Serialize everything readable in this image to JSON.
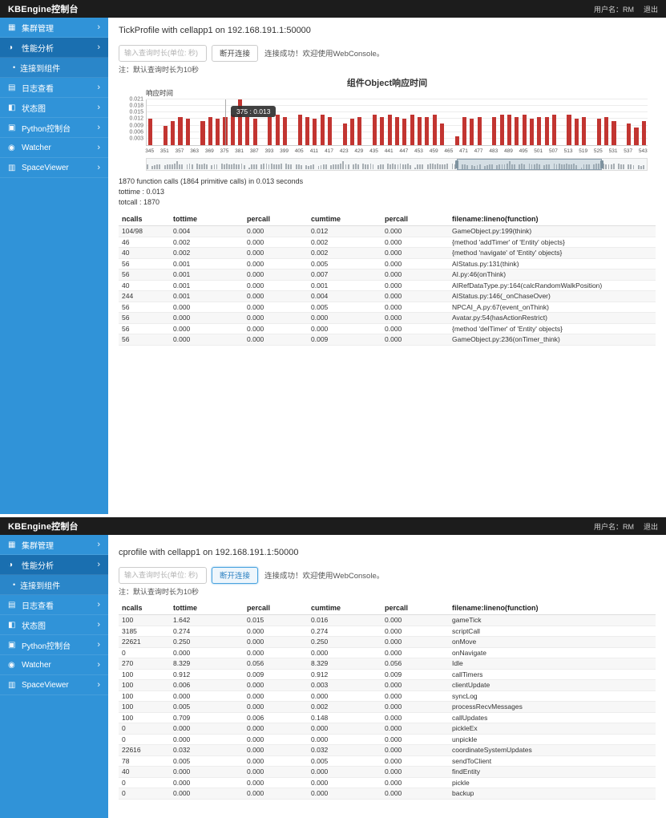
{
  "colors": {
    "header_bg": "#1c1c1c",
    "sidebar_bg": "#3093d8",
    "sidebar_active_bg": "#1a6fb0",
    "submenu_bg": "#2a86c9",
    "bar_color": "#c23531",
    "focus_blue": "#4aa3df"
  },
  "header": {
    "title": "KBEngine控制台",
    "user": "用户名：RM",
    "logout": "退出"
  },
  "sidebar": {
    "items": [
      {
        "key": "cluster",
        "label": "集群管理",
        "icon": "cluster-icon",
        "glyph": "▦",
        "active": false
      },
      {
        "key": "performance",
        "label": "性能分析",
        "icon": "performance-icon",
        "glyph": "◑",
        "active": true
      },
      {
        "key": "logs",
        "label": "日志查看",
        "icon": "logs-icon",
        "glyph": "▤",
        "active": false
      },
      {
        "key": "status-chart",
        "label": "状态图",
        "icon": "status-chart-icon",
        "glyph": "◧",
        "active": false
      },
      {
        "key": "python-console",
        "label": "Python控制台",
        "icon": "python-console-icon",
        "glyph": "▣",
        "active": false
      },
      {
        "key": "watcher",
        "label": "Watcher",
        "icon": "watcher-icon",
        "glyph": "◉",
        "active": false
      },
      {
        "key": "spaceviewer",
        "label": "SpaceViewer",
        "icon": "spaceviewer-icon",
        "glyph": "▥",
        "active": false
      }
    ],
    "submenu_label": "连接到组件",
    "chevron": "›",
    "bullet": "•"
  },
  "screen1": {
    "title": "TickProfile with cellapp1 on 192.168.191.1:50000",
    "input_placeholder": "输入查询时长(单位: 秒)",
    "disconnect_label": "断开连接",
    "status_text": "连接成功！欢迎使用WebConsole。",
    "note": "注：默认查询时长为10秒",
    "stats": [
      "1870 function calls (1864 primitive calls) in 0.013 seconds",
      "tottime : 0.013",
      "totcall : 1870"
    ],
    "table": {
      "headers": [
        "ncalls",
        "tottime",
        "percall",
        "cumtime",
        "percall",
        "filename:lineno(function)"
      ],
      "rows": [
        [
          "104/98",
          "0.004",
          "0.000",
          "0.012",
          "0.000",
          "GameObject.py:199(think)"
        ],
        [
          "46",
          "0.002",
          "0.000",
          "0.002",
          "0.000",
          "{method 'addTimer' of 'Entity' objects}"
        ],
        [
          "40",
          "0.002",
          "0.000",
          "0.002",
          "0.000",
          "{method 'navigate' of 'Entity' objects}"
        ],
        [
          "56",
          "0.001",
          "0.000",
          "0.005",
          "0.000",
          "AIStatus.py:131(think)"
        ],
        [
          "56",
          "0.001",
          "0.000",
          "0.007",
          "0.000",
          "AI.py:46(onThink)"
        ],
        [
          "40",
          "0.001",
          "0.000",
          "0.001",
          "0.000",
          "AIRefDataType.py:164(calcRandomWalkPosition)"
        ],
        [
          "244",
          "0.001",
          "0.000",
          "0.004",
          "0.000",
          "AIStatus.py:146(_onChaseOver)"
        ],
        [
          "56",
          "0.000",
          "0.000",
          "0.005",
          "0.000",
          "NPCAI_A.py:67(event_onThink)"
        ],
        [
          "56",
          "0.000",
          "0.000",
          "0.000",
          "0.000",
          "Avatar.py:54(hasActionRestrict)"
        ],
        [
          "56",
          "0.000",
          "0.000",
          "0.000",
          "0.000",
          "{method 'delTimer' of 'Entity' objects}"
        ],
        [
          "56",
          "0.000",
          "0.000",
          "0.009",
          "0.000",
          "GameObject.py:236(onTimer_think)"
        ]
      ]
    }
  },
  "screen2": {
    "title": "cprofile with cellapp1 on 192.168.191.1:50000",
    "input_placeholder": "输入查询时长(单位: 秒)",
    "disconnect_label": "断开连接",
    "status_text": "连接成功！欢迎使用WebConsole。",
    "note": "注：默认查询时长为10秒",
    "table": {
      "headers": [
        "ncalls",
        "tottime",
        "percall",
        "cumtime",
        "percall",
        "filename:lineno(function)"
      ],
      "rows": [
        [
          "100",
          "1.642",
          "0.015",
          "0.016",
          "0.000",
          "gameTick"
        ],
        [
          "3185",
          "0.274",
          "0.000",
          "0.274",
          "0.000",
          "scriptCall"
        ],
        [
          "22621",
          "0.250",
          "0.000",
          "0.250",
          "0.000",
          "onMove"
        ],
        [
          "0",
          "0.000",
          "0.000",
          "0.000",
          "0.000",
          "onNavigate"
        ],
        [
          "270",
          "8.329",
          "0.056",
          "8.329",
          "0.056",
          "Idle"
        ],
        [
          "100",
          "0.912",
          "0.009",
          "0.912",
          "0.009",
          "callTimers"
        ],
        [
          "100",
          "0.006",
          "0.000",
          "0.003",
          "0.000",
          "clientUpdate"
        ],
        [
          "100",
          "0.000",
          "0.000",
          "0.000",
          "0.000",
          "syncLog"
        ],
        [
          "100",
          "0.005",
          "0.000",
          "0.002",
          "0.000",
          "processRecvMessages"
        ],
        [
          "100",
          "0.709",
          "0.006",
          "0.148",
          "0.000",
          "callUpdates"
        ],
        [
          "0",
          "0.000",
          "0.000",
          "0.000",
          "0.000",
          "pickleEx"
        ],
        [
          "0",
          "0.000",
          "0.000",
          "0.000",
          "0.000",
          "unpickle"
        ],
        [
          "22616",
          "0.032",
          "0.000",
          "0.032",
          "0.000",
          "coordinateSystemUpdates"
        ],
        [
          "78",
          "0.005",
          "0.000",
          "0.005",
          "0.000",
          "sendToClient"
        ],
        [
          "40",
          "0.000",
          "0.000",
          "0.000",
          "0.000",
          "findEntity"
        ],
        [
          "0",
          "0.000",
          "0.000",
          "0.000",
          "0.000",
          "pickle"
        ],
        [
          "0",
          "0.000",
          "0.000",
          "0.000",
          "0.000",
          "backup"
        ]
      ]
    }
  },
  "chart_data": {
    "type": "bar",
    "title": "组件Object响应时间",
    "legend": [
      "响应时间"
    ],
    "series_color": "#c23531",
    "x_start": 345,
    "x_step": 3,
    "x_tick_labels": [
      345,
      351,
      357,
      363,
      369,
      375,
      381,
      387,
      393,
      399,
      405,
      411,
      417,
      423,
      429,
      435,
      441,
      447,
      453,
      459,
      465,
      471,
      477,
      483,
      489,
      495,
      501,
      507,
      513,
      519,
      525,
      531,
      537,
      543
    ],
    "values": [
      0.012,
      0.0,
      0.009,
      0.011,
      0.013,
      0.012,
      0.0,
      0.011,
      0.013,
      0.012,
      0.013,
      0.014,
      0.021,
      0.013,
      0.012,
      0.0,
      0.013,
      0.014,
      0.013,
      0.0,
      0.014,
      0.013,
      0.012,
      0.014,
      0.013,
      0.0,
      0.01,
      0.012,
      0.013,
      0.0,
      0.014,
      0.013,
      0.014,
      0.013,
      0.012,
      0.014,
      0.013,
      0.013,
      0.014,
      0.01,
      0.0,
      0.004,
      0.013,
      0.012,
      0.013,
      0.0,
      0.013,
      0.014,
      0.014,
      0.013,
      0.014,
      0.012,
      0.013,
      0.013,
      0.014,
      0.0,
      0.014,
      0.012,
      0.013,
      0.0,
      0.012,
      0.013,
      0.011,
      0.0,
      0.01,
      0.008,
      0.011
    ],
    "ylim": [
      0,
      0.021
    ],
    "y_ticks": [
      0.003,
      0.006,
      0.009,
      0.012,
      0.015,
      0.018,
      0.021
    ],
    "tooltip": {
      "text": "375 : 0.013",
      "index": 10
    },
    "datazoom": {
      "start_pct": 62,
      "end_pct": 91
    },
    "xlabel": "",
    "ylabel": "响应时间"
  }
}
